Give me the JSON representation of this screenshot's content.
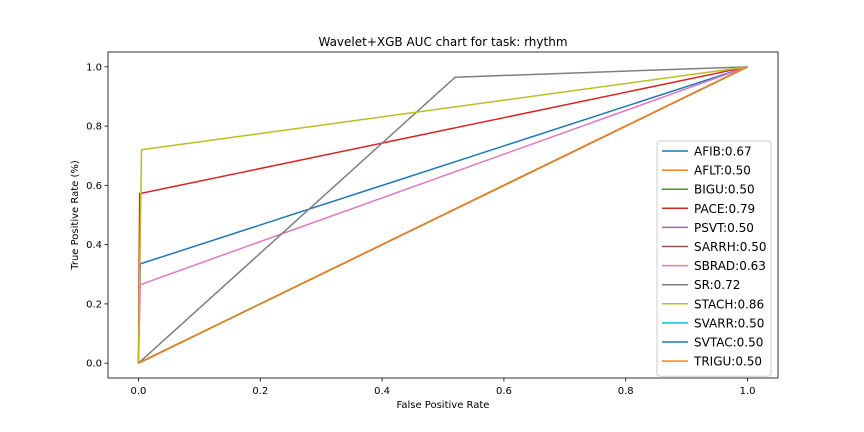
{
  "chart_data": {
    "type": "line",
    "title": "Wavelet+XGB AUC chart for task: rhythm",
    "xlabel": "False Positive Rate",
    "ylabel": "True Positive Rate (%)",
    "xlim": [
      -0.05,
      1.05
    ],
    "ylim": [
      -0.05,
      1.05
    ],
    "xticks": [
      "0.0",
      "0.2",
      "0.4",
      "0.6",
      "0.8",
      "1.0"
    ],
    "yticks": [
      "0.0",
      "0.2",
      "0.4",
      "0.6",
      "0.8",
      "1.0"
    ],
    "grid": false,
    "legend_position": "lower-right",
    "series": [
      {
        "name": "AFIB:0.67",
        "color": "#1f77b4",
        "x": [
          0,
          0.003,
          1
        ],
        "y": [
          0,
          0.335,
          1
        ]
      },
      {
        "name": "AFLT:0.50",
        "color": "#ff7f0e",
        "x": [
          0,
          1
        ],
        "y": [
          0,
          1
        ]
      },
      {
        "name": "BIGU:0.50",
        "color": "#2ca02c",
        "x": [
          0,
          1
        ],
        "y": [
          0,
          1
        ]
      },
      {
        "name": "PACE:0.79",
        "color": "#d62728",
        "x": [
          0,
          0.002,
          1
        ],
        "y": [
          0,
          0.572,
          1
        ]
      },
      {
        "name": "PSVT:0.50",
        "color": "#9467bd",
        "x": [
          0,
          1
        ],
        "y": [
          0,
          1
        ]
      },
      {
        "name": "SARRH:0.50",
        "color": "#8c564b",
        "x": [
          0,
          1
        ],
        "y": [
          0,
          1
        ]
      },
      {
        "name": "SBRAD:0.63",
        "color": "#e377c2",
        "x": [
          0,
          0.003,
          1
        ],
        "y": [
          0,
          0.265,
          1
        ]
      },
      {
        "name": "SR:0.72",
        "color": "#7f7f7f",
        "x": [
          0,
          0.52,
          1
        ],
        "y": [
          0,
          0.965,
          1
        ]
      },
      {
        "name": "STACH:0.86",
        "color": "#bcbd22",
        "x": [
          0,
          0.005,
          1
        ],
        "y": [
          0,
          0.72,
          1
        ]
      },
      {
        "name": "SVARR:0.50",
        "color": "#17becf",
        "x": [
          0,
          1
        ],
        "y": [
          0,
          1
        ]
      },
      {
        "name": "SVTAC:0.50",
        "color": "#1f77b4",
        "x": [
          0,
          1
        ],
        "y": [
          0,
          1
        ]
      },
      {
        "name": "TRIGU:0.50",
        "color": "#ff7f0e",
        "x": [
          0,
          1
        ],
        "y": [
          0,
          1
        ]
      }
    ]
  }
}
